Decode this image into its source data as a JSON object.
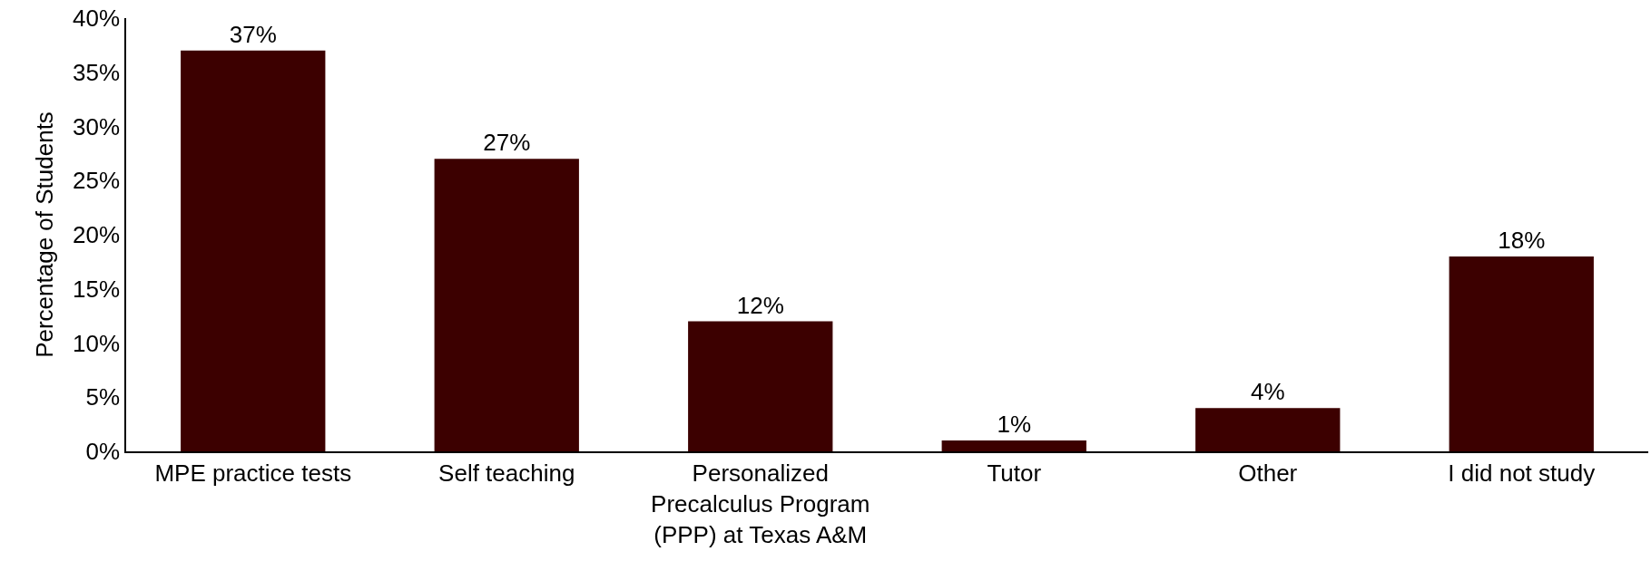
{
  "chart_data": {
    "type": "bar",
    "ylabel": "Percentage of Students",
    "categories": [
      "MPE practice tests",
      "Self teaching",
      "Personalized Precalculus Program (PPP) at Texas A&M",
      "Tutor",
      "Other",
      "I did not study"
    ],
    "values": [
      37,
      27,
      12,
      1,
      4,
      18
    ],
    "value_labels": [
      "37%",
      "27%",
      "12%",
      "1%",
      "4%",
      "18%"
    ],
    "color": "#3c0000",
    "ylim": [
      0,
      40
    ],
    "yticks": [
      {
        "value": 0,
        "label": "0%"
      },
      {
        "value": 5,
        "label": "5%"
      },
      {
        "value": 10,
        "label": "10%"
      },
      {
        "value": 15,
        "label": "15%"
      },
      {
        "value": 20,
        "label": "20%"
      },
      {
        "value": 25,
        "label": "25%"
      },
      {
        "value": 30,
        "label": "30%"
      },
      {
        "value": 35,
        "label": "35%"
      },
      {
        "value": 40,
        "label": "40%"
      }
    ]
  }
}
